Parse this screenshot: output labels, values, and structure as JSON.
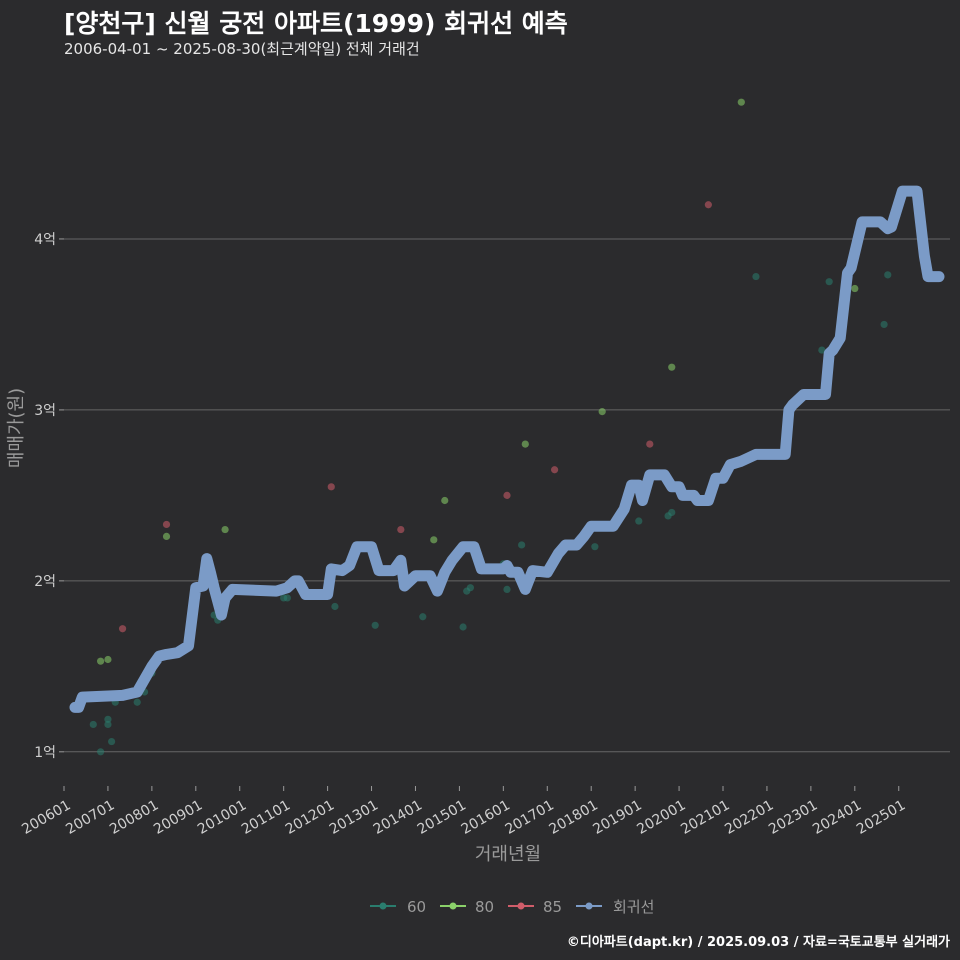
{
  "title": "[양천구] 신월 궁전 아파트(1999) 회귀선 예측",
  "subtitle": "2006-04-01 ~ 2025-08-30(최근계약일) 전체 거래건",
  "caption": "©디아파트(dapt.kr) / 2025.09.03 / 자료=국토교통부 실거래가",
  "chart_data": {
    "type": "scatter",
    "xlabel": "거래년월",
    "ylabel": "매매가(원)",
    "ylim": [
      0.8,
      5.0
    ],
    "xlim": [
      "2006-01",
      "2026-03"
    ],
    "y_ticks": [
      {
        "value": 1,
        "label": "1억"
      },
      {
        "value": 2,
        "label": "2억"
      },
      {
        "value": 3,
        "label": "3억"
      },
      {
        "value": 4,
        "label": "4억"
      }
    ],
    "x_ticks": [
      "200601",
      "200701",
      "200801",
      "200901",
      "201001",
      "201101",
      "201201",
      "201301",
      "201401",
      "201501",
      "201601",
      "201701",
      "201801",
      "201901",
      "202001",
      "202101",
      "202201",
      "202301",
      "202401",
      "202501"
    ],
    "grid": "horizontal",
    "legend_position": "bottom",
    "colors": {
      "60": "#2a7d6e",
      "80": "#8bd16a",
      "85": "#d05d6a",
      "회귀선": "#7b9bc7"
    },
    "series": [
      {
        "name": "60",
        "points": [
          [
            "2006-09",
            1.16
          ],
          [
            "2006-11",
            1.0
          ],
          [
            "2007-01",
            1.16
          ],
          [
            "2007-01",
            1.19
          ],
          [
            "2007-02",
            1.06
          ],
          [
            "2007-03",
            1.29
          ],
          [
            "2007-09",
            1.29
          ],
          [
            "2007-09",
            1.34
          ],
          [
            "2007-10",
            1.41
          ],
          [
            "2007-10",
            1.37
          ],
          [
            "2007-11",
            1.35
          ],
          [
            "2008-01",
            1.46
          ],
          [
            "2009-06",
            1.8
          ],
          [
            "2009-07",
            1.77
          ],
          [
            "2011-01",
            1.9
          ],
          [
            "2011-02",
            1.9
          ],
          [
            "2012-03",
            1.85
          ],
          [
            "2013-02",
            1.74
          ],
          [
            "2014-03",
            1.79
          ],
          [
            "2015-02",
            1.73
          ],
          [
            "2015-03",
            1.94
          ],
          [
            "2015-04",
            1.96
          ],
          [
            "2016-01",
            2.06
          ],
          [
            "2016-01",
            2.1
          ],
          [
            "2016-02",
            1.95
          ],
          [
            "2016-06",
            2.21
          ],
          [
            "2018-02",
            2.2
          ],
          [
            "2018-07",
            2.33
          ],
          [
            "2019-02",
            2.35
          ],
          [
            "2019-10",
            2.38
          ],
          [
            "2019-11",
            2.4
          ],
          [
            "2020-03",
            2.5
          ],
          [
            "2021-10",
            3.78
          ],
          [
            "2023-04",
            3.35
          ],
          [
            "2023-06",
            3.75
          ],
          [
            "2024-09",
            3.5
          ],
          [
            "2024-10",
            3.79
          ]
        ]
      },
      {
        "name": "80",
        "points": [
          [
            "2006-11",
            1.53
          ],
          [
            "2007-01",
            1.54
          ],
          [
            "2007-10",
            1.37
          ],
          [
            "2008-05",
            2.26
          ],
          [
            "2009-09",
            2.3
          ],
          [
            "2014-06",
            2.24
          ],
          [
            "2014-09",
            2.47
          ],
          [
            "2016-07",
            2.8
          ],
          [
            "2018-04",
            2.99
          ],
          [
            "2019-11",
            3.25
          ],
          [
            "2021-06",
            4.8
          ],
          [
            "2024-01",
            3.71
          ]
        ]
      },
      {
        "name": "85",
        "points": [
          [
            "2007-05",
            1.72
          ],
          [
            "2008-05",
            2.33
          ],
          [
            "2012-02",
            2.55
          ],
          [
            "2013-09",
            2.3
          ],
          [
            "2016-02",
            2.5
          ],
          [
            "2017-03",
            2.65
          ],
          [
            "2019-05",
            2.8
          ],
          [
            "2020-09",
            4.2
          ]
        ]
      }
    ],
    "regression": {
      "name": "회귀선",
      "segments": [
        [
          [
            "2006-04",
            1.26
          ],
          [
            "2006-05",
            1.26
          ],
          [
            "2006-06",
            1.32
          ],
          [
            "2007-05",
            1.33
          ],
          [
            "2007-09",
            1.35
          ],
          [
            "2008-01",
            1.5
          ],
          [
            "2008-03",
            1.56
          ],
          [
            "2008-05",
            1.57
          ],
          [
            "2008-08",
            1.58
          ],
          [
            "2008-11",
            1.62
          ],
          [
            "2009-01",
            1.96
          ],
          [
            "2009-03",
            1.97
          ],
          [
            "2009-04",
            2.13
          ],
          [
            "2009-05",
            2.05
          ],
          [
            "2009-06",
            1.96
          ],
          [
            "2009-08",
            1.8
          ],
          [
            "2009-09",
            1.9
          ],
          [
            "2009-11",
            1.95
          ],
          [
            "2010-11",
            1.94
          ],
          [
            "2011-02",
            1.96
          ],
          [
            "2011-04",
            2.0
          ],
          [
            "2011-05",
            2.0
          ],
          [
            "2011-07",
            1.92
          ],
          [
            "2012-01",
            1.92
          ],
          [
            "2012-02",
            2.07
          ],
          [
            "2012-05",
            2.06
          ],
          [
            "2012-07",
            2.09
          ],
          [
            "2012-09",
            2.2
          ],
          [
            "2013-01",
            2.2
          ],
          [
            "2013-03",
            2.06
          ],
          [
            "2013-07",
            2.06
          ],
          [
            "2013-09",
            2.12
          ],
          [
            "2013-10",
            1.97
          ],
          [
            "2014-01",
            2.03
          ],
          [
            "2014-05",
            2.03
          ],
          [
            "2014-07",
            1.94
          ],
          [
            "2014-09",
            2.05
          ],
          [
            "2014-11",
            2.12
          ],
          [
            "2015-02",
            2.2
          ],
          [
            "2015-05",
            2.2
          ],
          [
            "2015-07",
            2.07
          ],
          [
            "2016-01",
            2.07
          ],
          [
            "2016-02",
            2.09
          ],
          [
            "2016-03",
            2.05
          ],
          [
            "2016-05",
            2.05
          ],
          [
            "2016-07",
            1.95
          ],
          [
            "2016-09",
            2.06
          ],
          [
            "2017-01",
            2.05
          ],
          [
            "2017-04",
            2.16
          ],
          [
            "2017-06",
            2.21
          ],
          [
            "2017-09",
            2.21
          ],
          [
            "2017-11",
            2.26
          ],
          [
            "2018-01",
            2.32
          ],
          [
            "2018-07",
            2.32
          ],
          [
            "2018-10",
            2.42
          ],
          [
            "2018-12",
            2.56
          ],
          [
            "2019-02",
            2.56
          ],
          [
            "2019-03",
            2.47
          ],
          [
            "2019-05",
            2.62
          ],
          [
            "2019-09",
            2.62
          ],
          [
            "2019-11",
            2.55
          ],
          [
            "2020-01",
            2.55
          ],
          [
            "2020-02",
            2.5
          ],
          [
            "2020-05",
            2.5
          ],
          [
            "2020-06",
            2.47
          ],
          [
            "2020-09",
            2.47
          ],
          [
            "2020-11",
            2.6
          ],
          [
            "2021-01",
            2.6
          ],
          [
            "2021-03",
            2.68
          ],
          [
            "2021-06",
            2.7
          ],
          [
            "2021-08",
            2.72
          ],
          [
            "2021-10",
            2.74
          ],
          [
            "2022-06",
            2.74
          ],
          [
            "2022-07",
            3.0
          ],
          [
            "2022-08",
            3.03
          ],
          [
            "2022-11",
            3.09
          ],
          [
            "2023-05",
            3.09
          ],
          [
            "2023-06",
            3.33
          ],
          [
            "2023-07",
            3.35
          ],
          [
            "2023-09",
            3.42
          ],
          [
            "2023-11",
            3.8
          ],
          [
            "2023-12",
            3.83
          ],
          [
            "2024-03",
            4.1
          ],
          [
            "2024-08",
            4.1
          ],
          [
            "2024-10",
            4.06
          ],
          [
            "2024-11",
            4.07
          ],
          [
            "2025-02",
            4.28
          ],
          [
            "2025-06",
            4.28
          ],
          [
            "2025-08",
            3.9
          ],
          [
            "2025-09",
            3.78
          ],
          [
            "2025-12",
            3.78
          ]
        ]
      ]
    }
  },
  "legend": [
    {
      "label": "60",
      "color": "#2a7d6e"
    },
    {
      "label": "80",
      "color": "#8bd16a"
    },
    {
      "label": "85",
      "color": "#d05d6a"
    },
    {
      "label": "회귀선",
      "color": "#7b9bc7"
    }
  ]
}
